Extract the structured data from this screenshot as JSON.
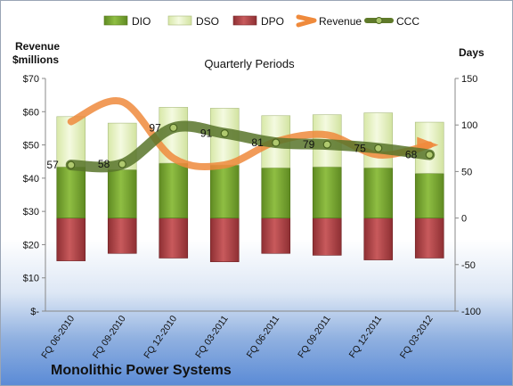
{
  "chart_data": {
    "type": "bar",
    "title": "Quarterly Periods",
    "company": "Monolithic Power Systems",
    "left_axis_label": [
      "Revenue",
      "$millions"
    ],
    "right_axis_label": "Days",
    "categories": [
      "FQ 06-2010",
      "FQ 09-2010",
      "FQ 12-2010",
      "FQ 03-2011",
      "FQ 06-2011",
      "FQ 09-2011",
      "FQ 12-2011",
      "FQ 03-2012"
    ],
    "left_axis": {
      "ylim": [
        0,
        70
      ],
      "ticks": [
        "$-",
        "$10",
        "$20",
        "$30",
        "$40",
        "$50",
        "$60",
        "$70"
      ]
    },
    "right_axis": {
      "ylim": [
        -100,
        150
      ],
      "ticks": [
        "-100",
        "-50",
        "0",
        "50",
        "100",
        "150"
      ]
    },
    "legend": {
      "placement": "top",
      "entries": [
        "DIO",
        "DSO",
        "DPO",
        "Revenue",
        "CCC"
      ]
    },
    "series": [
      {
        "name": "DIO",
        "unit": "days",
        "values": [
          55,
          52,
          59,
          57,
          54,
          55,
          54,
          48
        ]
      },
      {
        "name": "DSO",
        "unit": "days",
        "values": [
          54,
          50,
          60,
          61,
          56,
          56,
          59,
          55
        ]
      },
      {
        "name": "DPO",
        "unit": "days",
        "values": [
          -46,
          -38,
          -43,
          -47,
          -38,
          -40,
          -45,
          -43
        ]
      },
      {
        "name": "Revenue",
        "unit": "$millions",
        "values": [
          57,
          63,
          46,
          44,
          51,
          53,
          47,
          50
        ]
      },
      {
        "name": "CCC",
        "unit": "days",
        "values": [
          57,
          58,
          97,
          91,
          81,
          79,
          75,
          68
        ]
      }
    ],
    "data_labels": [
      "57",
      "58",
      "97",
      "91",
      "81",
      "79",
      "75",
      "68"
    ],
    "colors": {
      "DIO": "#77a033",
      "DSO": "#e8f2c4",
      "DPO": "#b34a4c",
      "Revenue": "#ef8a3c",
      "CCC": "#5f7a2a"
    }
  }
}
